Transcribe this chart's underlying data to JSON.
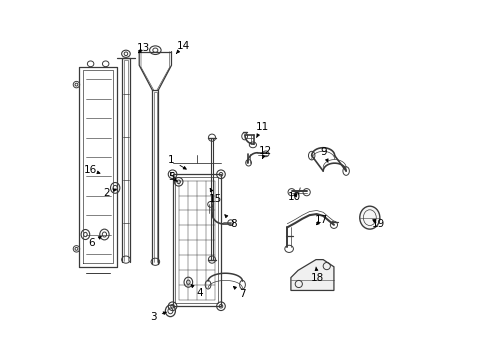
{
  "background_color": "#ffffff",
  "line_color": "#3a3a3a",
  "label_fontsize": 7.5,
  "parts": {
    "labels_and_arrows": {
      "1": {
        "label": [
          0.295,
          0.555
        ],
        "arrow": [
          0.345,
          0.525
        ]
      },
      "2": {
        "label": [
          0.115,
          0.465
        ],
        "arrow": [
          0.15,
          0.478
        ]
      },
      "3": {
        "label": [
          0.245,
          0.118
        ],
        "arrow": [
          0.29,
          0.135
        ]
      },
      "4": {
        "label": [
          0.375,
          0.185
        ],
        "arrow": [
          0.342,
          0.215
        ]
      },
      "5": {
        "label": [
          0.295,
          0.508
        ],
        "arrow": [
          0.312,
          0.495
        ]
      },
      "6": {
        "label": [
          0.072,
          0.325
        ],
        "arrow": [
          0.108,
          0.348
        ]
      },
      "7": {
        "label": [
          0.492,
          0.182
        ],
        "arrow": [
          0.46,
          0.21
        ]
      },
      "8": {
        "label": [
          0.468,
          0.378
        ],
        "arrow": [
          0.442,
          0.405
        ]
      },
      "9": {
        "label": [
          0.72,
          0.578
        ],
        "arrow": [
          0.732,
          0.548
        ]
      },
      "10": {
        "label": [
          0.638,
          0.452
        ],
        "arrow": [
          0.65,
          0.47
        ]
      },
      "11": {
        "label": [
          0.548,
          0.648
        ],
        "arrow": [
          0.532,
          0.618
        ]
      },
      "12": {
        "label": [
          0.558,
          0.582
        ],
        "arrow": [
          0.548,
          0.558
        ]
      },
      "13": {
        "label": [
          0.218,
          0.868
        ],
        "arrow": [
          0.195,
          0.848
        ]
      },
      "14": {
        "label": [
          0.328,
          0.875
        ],
        "arrow": [
          0.308,
          0.852
        ]
      },
      "15": {
        "label": [
          0.418,
          0.448
        ],
        "arrow": [
          0.402,
          0.478
        ]
      },
      "16": {
        "label": [
          0.068,
          0.528
        ],
        "arrow": [
          0.098,
          0.518
        ]
      },
      "17": {
        "label": [
          0.712,
          0.388
        ],
        "arrow": [
          0.692,
          0.368
        ]
      },
      "18": {
        "label": [
          0.702,
          0.228
        ],
        "arrow": [
          0.698,
          0.258
        ]
      },
      "19": {
        "label": [
          0.872,
          0.378
        ],
        "arrow": [
          0.848,
          0.395
        ]
      }
    }
  }
}
